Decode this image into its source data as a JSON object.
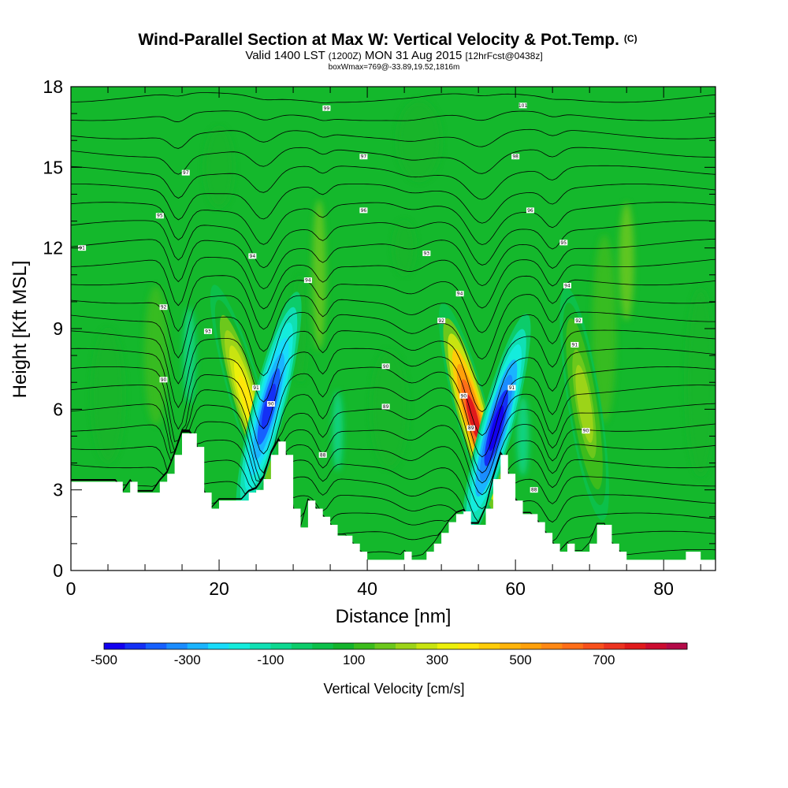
{
  "chart_data": {
    "type": "heatmap",
    "title": "Wind-Parallel Section at Max W: Vertical Velocity & Pot.Temp.",
    "title_mark": "(C)",
    "subtitle_parts": [
      "Valid 1400 LST ",
      "(1200Z)",
      " MON 31 Aug 2015 ",
      "[12hrFcst@0438z]"
    ],
    "subtitle2": "boxWmax=769@-33.89,19.52,1816m",
    "xlabel": "Distance [nm]",
    "ylabel": "Height [Kft MSL]",
    "xlim": [
      0,
      87
    ],
    "ylim": [
      0,
      18
    ],
    "x_ticks": [
      0,
      20,
      40,
      60,
      80
    ],
    "x_tick_labels": [
      "0",
      "20",
      "40",
      "60",
      "80"
    ],
    "y_ticks": [
      0,
      3,
      6,
      9,
      12,
      15,
      18
    ],
    "y_tick_labels": [
      "0",
      "3",
      "6",
      "9",
      "12",
      "15",
      "18"
    ],
    "colorbar": {
      "label": "Vertical Velocity [cm/s]",
      "min": -500,
      "max": 850,
      "step": 50,
      "tick_labels": [
        "-500",
        "-300",
        "-100",
        "100",
        "300",
        "500",
        "700"
      ],
      "colors": [
        "#1200f0",
        "#1430f5",
        "#1660ff",
        "#1a8cff",
        "#1ab4ff",
        "#18dcfa",
        "#14ecdc",
        "#10e0b4",
        "#0cd890",
        "#0ccc6a",
        "#0cc04a",
        "#14b42c",
        "#3cbc1c",
        "#6cc81c",
        "#9cd418",
        "#c8e410",
        "#ecf00a",
        "#ffe60a",
        "#ffcc08",
        "#ffb40a",
        "#ffa00a",
        "#ff8814",
        "#ff6e18",
        "#f8501c",
        "#ec3420",
        "#e01a1c",
        "#cc0c30",
        "#b40a48"
      ]
    },
    "terrain_profile_kft": [
      [
        0,
        3.3
      ],
      [
        1,
        3.3
      ],
      [
        2,
        3.3
      ],
      [
        3,
        3.3
      ],
      [
        4,
        3.3
      ],
      [
        5,
        3.3
      ],
      [
        6,
        3.3
      ],
      [
        7,
        2.9
      ],
      [
        8,
        3.3
      ],
      [
        9,
        2.9
      ],
      [
        10,
        2.9
      ],
      [
        11,
        2.9
      ],
      [
        12,
        3.3
      ],
      [
        13,
        3.6
      ],
      [
        14,
        4.3
      ],
      [
        15,
        5.1
      ],
      [
        16,
        5.1
      ],
      [
        17,
        4.6
      ],
      [
        18,
        2.9
      ],
      [
        19,
        2.3
      ],
      [
        20,
        2.6
      ],
      [
        21,
        2.6
      ],
      [
        22,
        2.6
      ],
      [
        23,
        2.6
      ],
      [
        24,
        2.9
      ],
      [
        25,
        3.0
      ],
      [
        26,
        3.4
      ],
      [
        27,
        4.3
      ],
      [
        28,
        4.8
      ],
      [
        29,
        4.3
      ],
      [
        30,
        2.3
      ],
      [
        31,
        1.6
      ],
      [
        32,
        2.6
      ],
      [
        33,
        2.3
      ],
      [
        34,
        2.0
      ],
      [
        35,
        1.7
      ],
      [
        36,
        1.3
      ],
      [
        37,
        1.3
      ],
      [
        38,
        1.0
      ],
      [
        39,
        0.7
      ],
      [
        40,
        0.4
      ],
      [
        41,
        0.4
      ],
      [
        42,
        0.4
      ],
      [
        43,
        0.4
      ],
      [
        44,
        0.4
      ],
      [
        45,
        0.7
      ],
      [
        46,
        0.4
      ],
      [
        47,
        0.4
      ],
      [
        48,
        0.7
      ],
      [
        49,
        1.0
      ],
      [
        50,
        1.4
      ],
      [
        51,
        1.8
      ],
      [
        52,
        2.1
      ],
      [
        53,
        2.2
      ],
      [
        54,
        1.7
      ],
      [
        55,
        1.7
      ],
      [
        56,
        2.3
      ],
      [
        57,
        3.4
      ],
      [
        58,
        4.3
      ],
      [
        59,
        3.6
      ],
      [
        60,
        2.6
      ],
      [
        61,
        2.1
      ],
      [
        62,
        2.1
      ],
      [
        63,
        1.8
      ],
      [
        64,
        1.4
      ],
      [
        65,
        1.0
      ],
      [
        66,
        0.7
      ],
      [
        67,
        1.0
      ],
      [
        68,
        0.7
      ],
      [
        69,
        0.7
      ],
      [
        70,
        1.0
      ],
      [
        71,
        1.7
      ],
      [
        72,
        1.7
      ],
      [
        73,
        1.0
      ],
      [
        74,
        0.7
      ],
      [
        75,
        0.4
      ],
      [
        76,
        0.4
      ],
      [
        77,
        0.4
      ],
      [
        78,
        0.4
      ],
      [
        79,
        0.4
      ],
      [
        80,
        0.4
      ],
      [
        81,
        0.4
      ],
      [
        82,
        0.4
      ],
      [
        83,
        0.7
      ],
      [
        84,
        0.7
      ],
      [
        85,
        0.4
      ],
      [
        86,
        0.4
      ],
      [
        87,
        0.4
      ]
    ],
    "updraft_cores": [
      {
        "x": 23.7,
        "z": 6.4,
        "w_cm_s": 380,
        "tilt": 0.32
      },
      {
        "x": 54.3,
        "z": 5.7,
        "w_cm_s": 769,
        "tilt": 0.3
      },
      {
        "x": 69.3,
        "z": 6.2,
        "w_cm_s": 240,
        "tilt": 0.18
      }
    ],
    "downdraft_cores": [
      {
        "x": 26.7,
        "z": 6.1,
        "w_cm_s": -420,
        "tilt": -0.28
      },
      {
        "x": 57.4,
        "z": 5.3,
        "w_cm_s": -500,
        "tilt": -0.3
      }
    ],
    "theta_contour_labels_degF": [
      {
        "x": 1.5,
        "z": 12.0,
        "text": "91"
      },
      {
        "x": 12.5,
        "z": 9.8,
        "text": "92"
      },
      {
        "x": 15.5,
        "z": 14.8,
        "text": "97"
      },
      {
        "x": 12.0,
        "z": 13.2,
        "text": "95"
      },
      {
        "x": 18.5,
        "z": 8.9,
        "text": "93"
      },
      {
        "x": 12.5,
        "z": 7.1,
        "text": "90"
      },
      {
        "x": 24.5,
        "z": 11.7,
        "text": "94"
      },
      {
        "x": 25.0,
        "z": 6.8,
        "text": "91"
      },
      {
        "x": 27.0,
        "z": 6.2,
        "text": "90"
      },
      {
        "x": 32.0,
        "z": 10.8,
        "text": "94"
      },
      {
        "x": 34.0,
        "z": 4.3,
        "text": "88"
      },
      {
        "x": 34.5,
        "z": 17.2,
        "text": "99"
      },
      {
        "x": 39.5,
        "z": 15.4,
        "text": "97"
      },
      {
        "x": 39.5,
        "z": 13.4,
        "text": "96"
      },
      {
        "x": 42.5,
        "z": 7.6,
        "text": "90"
      },
      {
        "x": 42.5,
        "z": 6.1,
        "text": "89"
      },
      {
        "x": 48.0,
        "z": 11.8,
        "text": "93"
      },
      {
        "x": 50.0,
        "z": 9.3,
        "text": "92"
      },
      {
        "x": 52.5,
        "z": 10.3,
        "text": "94"
      },
      {
        "x": 53.0,
        "z": 6.5,
        "text": "90"
      },
      {
        "x": 54.0,
        "z": 5.3,
        "text": "89"
      },
      {
        "x": 59.5,
        "z": 6.8,
        "text": "91"
      },
      {
        "x": 61.0,
        "z": 17.3,
        "text": "101"
      },
      {
        "x": 60.0,
        "z": 15.4,
        "text": "98"
      },
      {
        "x": 62.0,
        "z": 13.4,
        "text": "96"
      },
      {
        "x": 62.5,
        "z": 3.0,
        "text": "88"
      },
      {
        "x": 66.5,
        "z": 12.2,
        "text": "95"
      },
      {
        "x": 67.0,
        "z": 10.6,
        "text": "94"
      },
      {
        "x": 68.5,
        "z": 9.3,
        "text": "92"
      },
      {
        "x": 68.0,
        "z": 8.4,
        "text": "91"
      },
      {
        "x": 69.5,
        "z": 5.2,
        "text": "90"
      }
    ]
  }
}
